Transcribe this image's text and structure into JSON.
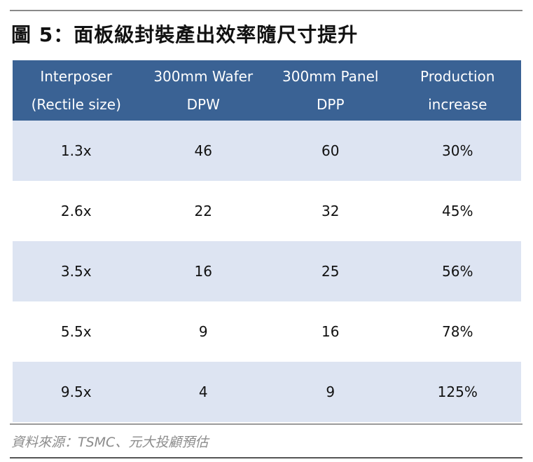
{
  "figure": {
    "title": "圖 5：面板級封裝產出效率隨尺寸提升"
  },
  "table": {
    "headers": [
      {
        "line1": "Interposer",
        "line2": "(Rectile size)"
      },
      {
        "line1": "300mm Wafer",
        "line2": "DPW"
      },
      {
        "line1": "300mm Panel",
        "line2": "DPP"
      },
      {
        "line1": "Production",
        "line2": "increase"
      }
    ],
    "rows": [
      [
        "1.3x",
        "46",
        "60",
        "30%"
      ],
      [
        "2.6x",
        "22",
        "32",
        "45%"
      ],
      [
        "3.5x",
        "16",
        "25",
        "56%"
      ],
      [
        "5.5x",
        "9",
        "16",
        "78%"
      ],
      [
        "9.5x",
        "4",
        "9",
        "125%"
      ]
    ]
  },
  "source": {
    "text": "資料來源：TSMC、元大投顧預估"
  },
  "colors": {
    "header_background": "#3a6294",
    "header_text": "#ffffff",
    "shaded_row": "#dde4f2"
  }
}
